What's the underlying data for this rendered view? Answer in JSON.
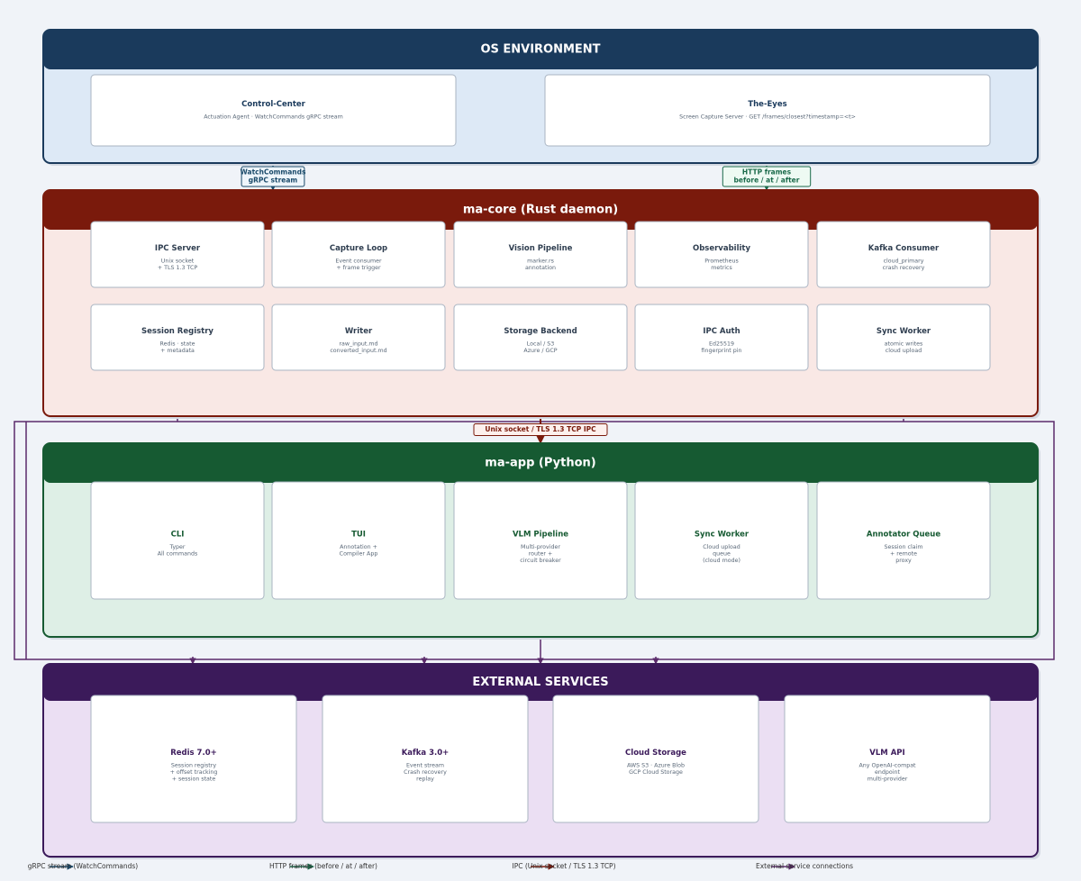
{
  "layers": [
    {
      "title": "OS ENVIRONMENT",
      "nodes": [
        {
          "title": "Control-Center",
          "lines": [
            "Actuation Agent  ·  WatchCommands gRPC stream"
          ]
        },
        {
          "title": "The-Eyes",
          "lines": [
            "Screen Capture Server  ·  GET /frames/closest?timestamp=<t>"
          ]
        }
      ]
    },
    {
      "title": "ma-core  (Rust daemon)",
      "nodes": [
        {
          "title": "IPC Server",
          "lines": [
            "Unix socket",
            "+ TLS 1.3 TCP"
          ]
        },
        {
          "title": "Capture Loop",
          "lines": [
            "Event consumer",
            "+ frame trigger"
          ]
        },
        {
          "title": "Vision Pipeline",
          "lines": [
            "marker.rs",
            "annotation"
          ]
        },
        {
          "title": "Observability",
          "lines": [
            "Prometheus",
            "metrics"
          ]
        },
        {
          "title": "Kafka Consumer",
          "lines": [
            "cloud_primary",
            "crash recovery"
          ]
        },
        {
          "title": "Session Registry",
          "lines": [
            "Redis  ·  state",
            "+ metadata"
          ]
        },
        {
          "title": "Writer",
          "lines": [
            "raw_input.md",
            "converted_input.md"
          ]
        },
        {
          "title": "Storage Backend",
          "lines": [
            "Local / S3",
            "Azure / GCP"
          ]
        },
        {
          "title": "IPC Auth",
          "lines": [
            "Ed25519",
            "fingerprint pin"
          ]
        },
        {
          "title": "Sync Worker",
          "lines": [
            "atomic writes",
            "cloud upload"
          ]
        }
      ]
    },
    {
      "title": "ma-app  (Python)",
      "nodes": [
        {
          "title": "CLI",
          "lines": [
            "Typer",
            "All commands"
          ]
        },
        {
          "title": "TUI",
          "lines": [
            "Annotation +",
            "Compiler App"
          ]
        },
        {
          "title": "VLM Pipeline",
          "lines": [
            "Multi-provider",
            "router +",
            "circuit breaker"
          ]
        },
        {
          "title": "Sync Worker",
          "lines": [
            "Cloud upload",
            "queue",
            "(cloud mode)"
          ]
        },
        {
          "title": "Annotator Queue",
          "lines": [
            "Session claim",
            "+ remote",
            "proxy"
          ]
        }
      ]
    },
    {
      "title": "EXTERNAL SERVICES",
      "nodes": [
        {
          "title": "Redis 7.0+",
          "lines": [
            "Session registry",
            "+ offset tracking",
            "+ session state"
          ]
        },
        {
          "title": "Kafka 3.0+",
          "lines": [
            "Event stream",
            "Crash recovery",
            "replay"
          ]
        },
        {
          "title": "Cloud Storage",
          "lines": [
            "AWS S3  ·  Azure Blob",
            "GCP Cloud Storage"
          ]
        },
        {
          "title": "VLM API",
          "lines": [
            "Any OpenAI-compat",
            "endpoint",
            "multi-provider"
          ]
        }
      ]
    }
  ],
  "edge_labels": [
    {
      "lines": [
        "WatchCommands",
        "gRPC stream"
      ]
    },
    {
      "lines": [
        "HTTP frames",
        "before / at / after"
      ]
    },
    {
      "lines": [
        "Unix socket / TLS 1.3 TCP  IPC"
      ]
    }
  ],
  "legend": [
    "gRPC stream  (WatchCommands)",
    "HTTP frames  (before / at / after)",
    "IPC  (Unix socket / TLS 1.3 TCP)",
    "External service connections"
  ]
}
